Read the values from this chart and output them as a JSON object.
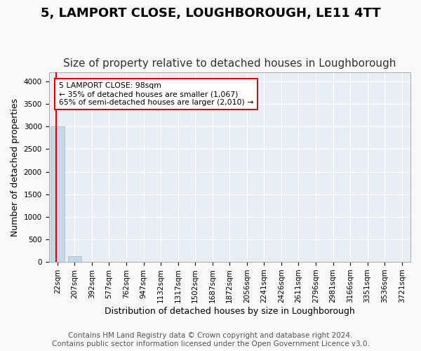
{
  "title": "5, LAMPORT CLOSE, LOUGHBOROUGH, LE11 4TT",
  "subtitle": "Size of property relative to detached houses in Loughborough",
  "xlabel": "Distribution of detached houses by size in Loughborough",
  "ylabel": "Number of detached properties",
  "footer_line1": "Contains HM Land Registry data © Crown copyright and database right 2024.",
  "footer_line2": "Contains public sector information licensed under the Open Government Licence v3.0.",
  "categories": [
    "22sqm",
    "207sqm",
    "392sqm",
    "577sqm",
    "762sqm",
    "947sqm",
    "1132sqm",
    "1317sqm",
    "1502sqm",
    "1687sqm",
    "1872sqm",
    "2056sqm",
    "2241sqm",
    "2426sqm",
    "2611sqm",
    "2796sqm",
    "2981sqm",
    "3166sqm",
    "3351sqm",
    "3536sqm",
    "3721sqm"
  ],
  "bar_values": [
    3000,
    120,
    0,
    0,
    0,
    0,
    0,
    0,
    0,
    0,
    0,
    0,
    0,
    0,
    0,
    0,
    0,
    0,
    0,
    0,
    0
  ],
  "bar_color": "#c5d8e8",
  "bar_edgecolor": "#a0b8cc",
  "ylim": [
    0,
    4200
  ],
  "yticks": [
    0,
    500,
    1000,
    1500,
    2000,
    2500,
    3000,
    3500,
    4000
  ],
  "property_size_sqm": 98,
  "vline_color": "#cc0000",
  "annotation_text": "5 LAMPORT CLOSE: 98sqm\n← 35% of detached houses are smaller (1,067)\n65% of semi-detached houses are larger (2,010) →",
  "annotation_box_color": "#ffffff",
  "annotation_box_edgecolor": "#cc0000",
  "bg_color": "#e8eef4",
  "grid_color": "#ffffff",
  "title_fontsize": 13,
  "subtitle_fontsize": 11,
  "label_fontsize": 9,
  "tick_fontsize": 7.5,
  "footer_fontsize": 7.5
}
